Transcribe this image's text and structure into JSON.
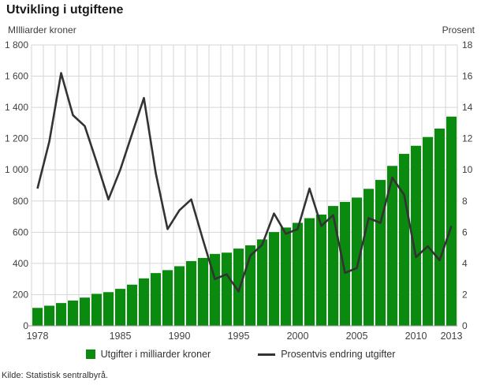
{
  "header": {
    "title": "Utvikling i utgiftene"
  },
  "axes": {
    "left_label": "MIlliarder kroner",
    "right_label": "Prosent"
  },
  "legend": [
    {
      "icon": "green-square",
      "label": "Utgifter i milliarder kroner"
    },
    {
      "icon": "black-line",
      "label": "Prosentvis endring utgifter"
    }
  ],
  "footer": {
    "source": "Kilde: Statistisk sentralbyrå."
  },
  "colors": {
    "bar": "#0a8a0f",
    "line": "#333333",
    "grid": "#d6d6d6",
    "axis_line": "#999999",
    "tick_text": "#404040"
  },
  "chart_data": {
    "type": "bar",
    "subtype": "bar+line combo",
    "title": "Utvikling i utgiftene",
    "categories": [
      1978,
      1979,
      1980,
      1981,
      1982,
      1983,
      1984,
      1985,
      1986,
      1987,
      1988,
      1989,
      1990,
      1991,
      1992,
      1993,
      1994,
      1995,
      1996,
      1997,
      1998,
      1999,
      2000,
      2001,
      2002,
      2003,
      2004,
      2005,
      2006,
      2007,
      2008,
      2009,
      2010,
      2011,
      2012,
      2013
    ],
    "series": [
      {
        "name": "Utgifter i milliarder kroner",
        "type": "bar",
        "axis": "left",
        "values": [
          115,
          129,
          146,
          162,
          181,
          205,
          216,
          237,
          264,
          304,
          338,
          357,
          382,
          415,
          435,
          461,
          469,
          495,
          516,
          554,
          601,
          630,
          660,
          690,
          713,
          768,
          794,
          822,
          878,
          935,
          1025,
          1102,
          1154,
          1210,
          1264,
          1341
        ]
      },
      {
        "name": "Prosentvis endring utgifter",
        "type": "line",
        "axis": "right",
        "values": [
          8.8,
          11.8,
          16.2,
          13.5,
          12.8,
          10.5,
          8.1,
          10.0,
          12.3,
          14.6,
          9.8,
          6.2,
          7.4,
          8.1,
          5.5,
          3.0,
          3.3,
          2.2,
          4.5,
          5.2,
          7.2,
          5.9,
          6.2,
          8.8,
          6.4,
          7.1,
          3.4,
          3.7,
          6.9,
          6.6,
          9.5,
          8.4,
          4.4,
          5.1,
          4.2,
          6.4
        ]
      }
    ],
    "left_axis": {
      "label": "MIlliarder kroner",
      "min": 0,
      "max": 1800,
      "tick_step": 200,
      "tick_labels": [
        "0",
        "200",
        "400",
        "600",
        "800",
        "1 000",
        "1 200",
        "1 400",
        "1 600",
        "1 800"
      ]
    },
    "right_axis": {
      "label": "Prosent",
      "min": 0,
      "max": 18,
      "tick_step": 2,
      "tick_labels": [
        "0",
        "2",
        "4",
        "6",
        "8",
        "10",
        "12",
        "14",
        "16",
        "18"
      ]
    },
    "x_tick_years": [
      1978,
      1985,
      1990,
      1995,
      2000,
      2005,
      2010,
      2013
    ],
    "grid": "horizontal every 200 (left) / 2 (right); vertical every year",
    "legend_position": "bottom"
  }
}
